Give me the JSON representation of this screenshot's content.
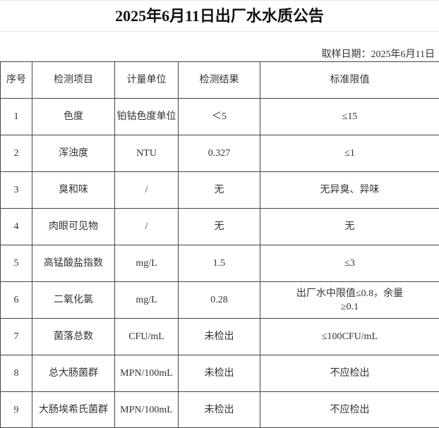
{
  "title": "2025年6月11日出厂水水质公告",
  "sample_date": "取样日期：2025年6月11日",
  "headers": [
    "序号",
    "检测项目",
    "计量单位",
    "检测结果",
    "标准限值"
  ],
  "rows": [
    [
      "1",
      "色度",
      "铂钴色度单位",
      "＜5",
      "≤15"
    ],
    [
      "2",
      "浑浊度",
      "NTU",
      "0.327",
      "≤1"
    ],
    [
      "3",
      "臭和味",
      "/",
      "无",
      "无异臭、异味"
    ],
    [
      "4",
      "肉眼可见物",
      "/",
      "无",
      "无"
    ],
    [
      "5",
      "高锰酸盐指数",
      "mg/L",
      "1.5",
      "≤3"
    ],
    [
      "6",
      "二氧化氯",
      "mg/L",
      "0.28",
      "出厂水中限值≤0.8，余量≥0.1"
    ],
    [
      "7",
      "菌落总数",
      "CFU/mL",
      "未检出",
      "≤100CFU/mL"
    ],
    [
      "8",
      "总大肠菌群",
      "MPN/100mL",
      "未检出",
      "不应检出"
    ],
    [
      "9",
      "大肠埃希氏菌群",
      "MPN/100mL",
      "未检出",
      "不应检出"
    ]
  ]
}
